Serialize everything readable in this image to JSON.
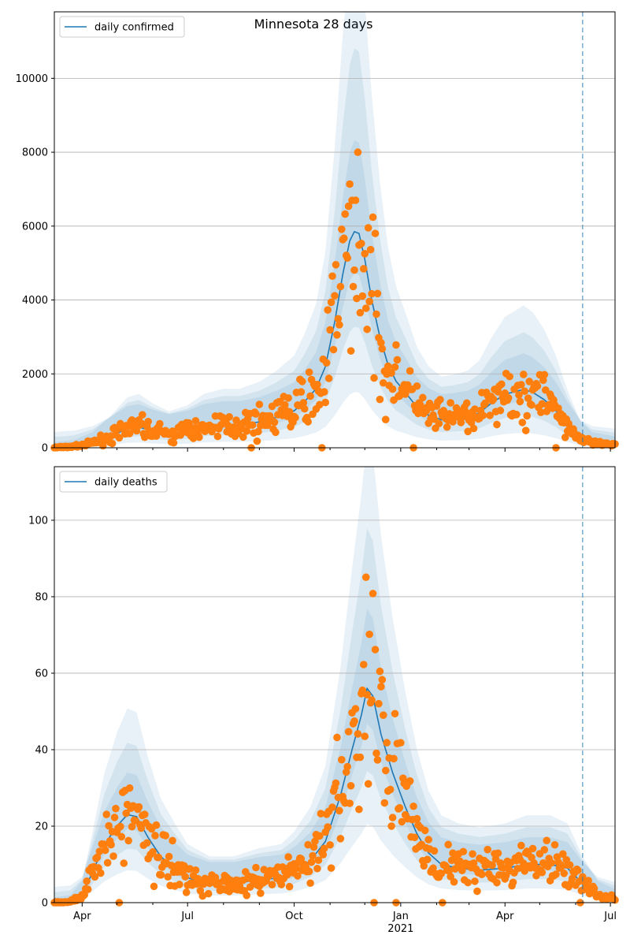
{
  "title": "Minnesota 28 days",
  "colors": {
    "line": "#1f77b4",
    "points": "#ff7f0e",
    "band": "#1f77b4",
    "vline": "#1f77b4",
    "grid": "#b0b0b0"
  },
  "x_axis": {
    "range": [
      "2020-03-08",
      "2021-07-05"
    ],
    "major_ticks": [
      {
        "date": "2020-04-01",
        "label": "Apr"
      },
      {
        "date": "2020-07-01",
        "label": "Jul"
      },
      {
        "date": "2020-10-01",
        "label": "Oct"
      },
      {
        "date": "2021-01-01",
        "label": "Jan"
      },
      {
        "date": "2021-04-01",
        "label": "Apr"
      },
      {
        "date": "2021-07-01",
        "label": "Jul"
      }
    ],
    "year_label": {
      "date": "2021-01-01",
      "label": "2021"
    },
    "minor_ticks": [
      "2020-05-01",
      "2020-06-01",
      "2020-08-01",
      "2020-09-01",
      "2020-11-01",
      "2020-12-01",
      "2021-02-01",
      "2021-03-01",
      "2021-05-01",
      "2021-06-01"
    ]
  },
  "vline_date": "2021-06-07",
  "chart_data": [
    {
      "type": "line",
      "legend": "daily confirmed",
      "legend_position": "top-left",
      "ylim": [
        0,
        11800
      ],
      "yticks": [
        0,
        2000,
        4000,
        6000,
        8000,
        10000
      ],
      "grid": "horizontal",
      "line_keypoints": [
        [
          "2020-03-08",
          5
        ],
        [
          "2020-03-25",
          30
        ],
        [
          "2020-04-10",
          120
        ],
        [
          "2020-04-25",
          300
        ],
        [
          "2020-05-10",
          520
        ],
        [
          "2020-05-20",
          560
        ],
        [
          "2020-06-01",
          450
        ],
        [
          "2020-06-15",
          360
        ],
        [
          "2020-07-01",
          430
        ],
        [
          "2020-07-15",
          560
        ],
        [
          "2020-08-01",
          620
        ],
        [
          "2020-08-15",
          620
        ],
        [
          "2020-09-01",
          700
        ],
        [
          "2020-09-15",
          820
        ],
        [
          "2020-10-01",
          1000
        ],
        [
          "2020-10-10",
          1250
        ],
        [
          "2020-10-20",
          1600
        ],
        [
          "2020-10-28",
          2200
        ],
        [
          "2020-11-05",
          3400
        ],
        [
          "2020-11-12",
          4700
        ],
        [
          "2020-11-18",
          5600
        ],
        [
          "2020-11-22",
          5850
        ],
        [
          "2020-11-26",
          5800
        ],
        [
          "2020-12-01",
          5100
        ],
        [
          "2020-12-07",
          4000
        ],
        [
          "2020-12-14",
          3000
        ],
        [
          "2020-12-21",
          2250
        ],
        [
          "2020-12-28",
          1800
        ],
        [
          "2021-01-05",
          1500
        ],
        [
          "2021-01-15",
          1100
        ],
        [
          "2021-01-25",
          880
        ],
        [
          "2021-02-05",
          760
        ],
        [
          "2021-02-15",
          780
        ],
        [
          "2021-02-28",
          830
        ],
        [
          "2021-03-10",
          950
        ],
        [
          "2021-03-20",
          1200
        ],
        [
          "2021-04-01",
          1450
        ],
        [
          "2021-04-10",
          1520
        ],
        [
          "2021-04-17",
          1580
        ],
        [
          "2021-04-25",
          1500
        ],
        [
          "2021-05-05",
          1300
        ],
        [
          "2021-05-15",
          1000
        ],
        [
          "2021-05-25",
          600
        ],
        [
          "2021-06-05",
          250
        ],
        [
          "2021-06-15",
          120
        ],
        [
          "2021-07-05",
          70
        ]
      ],
      "band_halfwidths_relative": [
        0.35,
        0.8,
        1.35
      ]
    },
    {
      "type": "line",
      "legend": "daily deaths",
      "legend_position": "top-left",
      "ylim": [
        0,
        114
      ],
      "yticks": [
        0,
        20,
        40,
        60,
        80,
        100
      ],
      "grid": "horizontal",
      "line_keypoints": [
        [
          "2020-03-08",
          0
        ],
        [
          "2020-03-22",
          0.3
        ],
        [
          "2020-04-01",
          2
        ],
        [
          "2020-04-10",
          8
        ],
        [
          "2020-04-20",
          15
        ],
        [
          "2020-05-01",
          20
        ],
        [
          "2020-05-10",
          23
        ],
        [
          "2020-05-18",
          22.5
        ],
        [
          "2020-05-28",
          17
        ],
        [
          "2020-06-08",
          12
        ],
        [
          "2020-06-20",
          9
        ],
        [
          "2020-07-01",
          6.5
        ],
        [
          "2020-07-20",
          5
        ],
        [
          "2020-08-10",
          5
        ],
        [
          "2020-09-01",
          6
        ],
        [
          "2020-09-20",
          6.5
        ],
        [
          "2020-10-01",
          8
        ],
        [
          "2020-10-15",
          11
        ],
        [
          "2020-10-28",
          16
        ],
        [
          "2020-11-10",
          28
        ],
        [
          "2020-11-20",
          40
        ],
        [
          "2020-11-28",
          49
        ],
        [
          "2020-12-03",
          56
        ],
        [
          "2020-12-08",
          54
        ],
        [
          "2020-12-15",
          44
        ],
        [
          "2020-12-25",
          34
        ],
        [
          "2021-01-05",
          25
        ],
        [
          "2021-01-15",
          18
        ],
        [
          "2021-01-25",
          13
        ],
        [
          "2021-02-05",
          10
        ],
        [
          "2021-02-20",
          9
        ],
        [
          "2021-03-10",
          8.5
        ],
        [
          "2021-04-01",
          9
        ],
        [
          "2021-04-20",
          10
        ],
        [
          "2021-05-10",
          10
        ],
        [
          "2021-05-25",
          9
        ],
        [
          "2021-06-07",
          5
        ],
        [
          "2021-06-20",
          2
        ],
        [
          "2021-07-05",
          1
        ]
      ],
      "band_halfwidths_relative": [
        0.3,
        0.7,
        1.15
      ]
    }
  ]
}
